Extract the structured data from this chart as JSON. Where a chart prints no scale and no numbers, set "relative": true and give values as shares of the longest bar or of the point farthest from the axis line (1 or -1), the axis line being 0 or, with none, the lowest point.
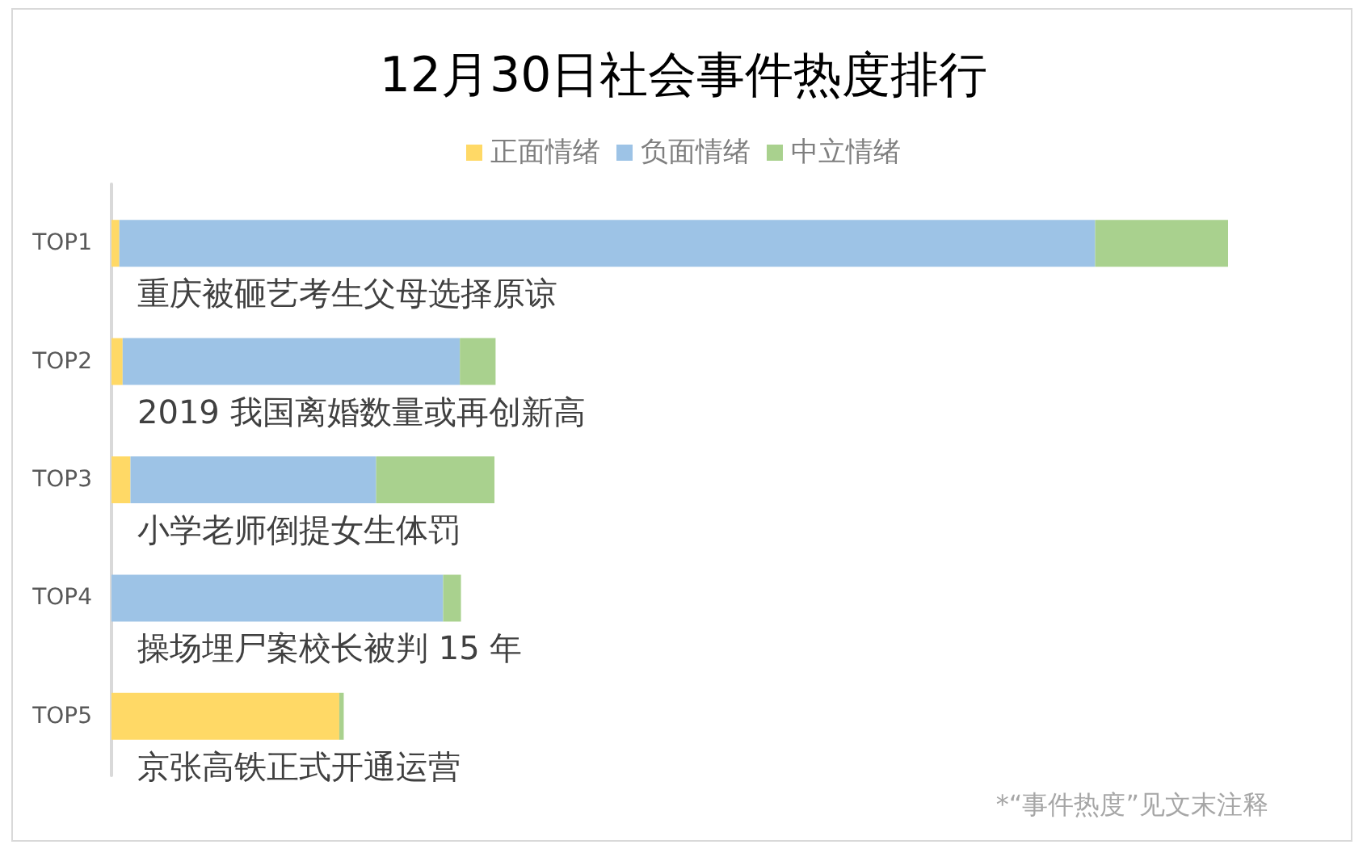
{
  "chart_data": {
    "type": "bar",
    "orientation": "horizontal",
    "stacked": true,
    "relative": true,
    "title": "12月30日社会事件热度排行",
    "categories": [
      "TOP1",
      "TOP2",
      "TOP3",
      "TOP4",
      "TOP5"
    ],
    "series": [
      {
        "name": "正面情绪",
        "color": "#ffd966",
        "values": [
          0.007,
          0.01,
          0.017,
          0,
          0.204
        ]
      },
      {
        "name": "负面情绪",
        "color": "#9dc3e6",
        "values": [
          0.874,
          0.302,
          0.22,
          0.297,
          0
        ]
      },
      {
        "name": "中立情绪",
        "color": "#a9d18e",
        "values": [
          0.119,
          0.032,
          0.106,
          0.016,
          0.004
        ]
      }
    ],
    "legend": "top",
    "annotations": [
      "重庆被砸艺考生父母选择原谅",
      "2019 我国离婚数量或再创新高",
      "小学老师倒提女生体罚",
      "操场埋尸案校长被判 15 年",
      "京张高铁正式开通运营",
      "*“事件热度”见文末注释"
    ]
  }
}
